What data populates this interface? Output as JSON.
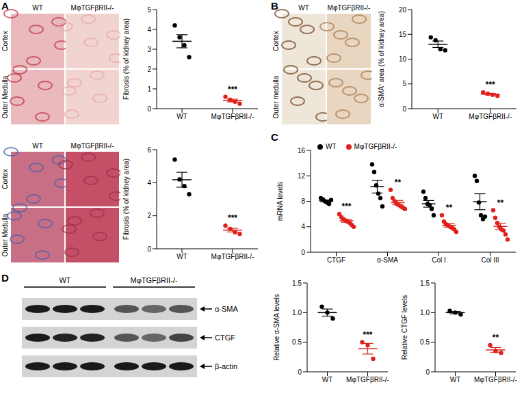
{
  "figure": {
    "letters": [
      "A",
      "B",
      "C",
      "D"
    ],
    "image_panels": [
      {
        "columns": [
          "WT",
          "MφTGFβRII-/-"
        ],
        "rows": [
          "Cortex",
          "Outer Medulla"
        ]
      },
      {
        "columns": [
          "WT",
          "MφTGFβRII-/-"
        ],
        "rows": [
          "Cortex",
          "Outer Medulla"
        ]
      },
      {
        "columns": [
          "WT",
          "MφTGFβRII-/-"
        ],
        "rows": [
          "Cortex",
          "Outer medulla"
        ]
      }
    ],
    "blot": {
      "groups": [
        "WT",
        "MφTGFβRII-/-"
      ],
      "bands": [
        "α-SMA",
        "CTGF",
        "β-actin"
      ]
    }
  },
  "chart_data": [
    {
      "type": "scatter",
      "y_label": "Fibrosis (% of kidney area)",
      "categories": [
        "WT",
        "MφTGFβRII-/-"
      ],
      "colors": [
        "#000000",
        "#e0201b"
      ],
      "values": [
        [
          4.2,
          3.6,
          3.2,
          2.6
        ],
        [
          0.6,
          0.45,
          0.35,
          0.25
        ]
      ],
      "mean": [
        3.4,
        0.41
      ],
      "sem": [
        0.33,
        0.07
      ],
      "significance": [
        null,
        "***"
      ],
      "ylim": [
        0,
        5
      ],
      "yticks": [
        0,
        1,
        2,
        3,
        4,
        5
      ]
    },
    {
      "type": "scatter",
      "y_label": "Fibrosis  (% of kidney area)",
      "categories": [
        "WT",
        "MφTGFβRII-/-"
      ],
      "colors": [
        "#000000",
        "#e0201b"
      ],
      "values": [
        [
          5.4,
          4.2,
          3.8,
          3.3
        ],
        [
          1.4,
          1.2,
          1.0,
          0.9
        ]
      ],
      "mean": [
        4.18,
        1.13
      ],
      "sem": [
        0.45,
        0.11
      ],
      "significance": [
        null,
        "***"
      ],
      "ylim": [
        0,
        6
      ],
      "yticks": [
        0,
        2,
        4,
        6
      ]
    },
    {
      "type": "scatter",
      "y_label": "α-SMA⁺ area (% of kidney area)",
      "categories": [
        "WT",
        "MφTGFβRII-/-"
      ],
      "colors": [
        "#000000",
        "#e0201b"
      ],
      "values": [
        [
          14.4,
          13.8,
          12.0,
          11.8
        ],
        [
          3.3,
          3.0,
          2.8,
          2.6
        ]
      ],
      "mean": [
        13.0,
        2.93
      ],
      "sem": [
        0.65,
        0.15
      ],
      "significance": [
        null,
        "***"
      ],
      "ylim": [
        0,
        20
      ],
      "yticks": [
        0,
        5,
        10,
        15,
        20
      ]
    },
    {
      "type": "scatter",
      "y_label": "mRNA levels",
      "categories": [
        "CTGF",
        "α-SMA",
        "Col I",
        "Col III"
      ],
      "legend": "top",
      "series": [
        {
          "name": "WT",
          "color": "#000000",
          "values": [
            [
              8.5,
              8.3,
              8.0,
              7.8,
              7.6,
              8.2
            ],
            [
              13.8,
              12.6,
              10.5,
              9.2,
              8.5,
              7.2
            ],
            [
              9.5,
              8.5,
              7.6,
              7.4,
              6.8,
              5.8
            ],
            [
              12.0,
              11.2,
              7.8,
              5.8,
              5.2,
              5.6
            ]
          ],
          "mean": [
            8.07,
            10.3,
            7.6,
            7.93
          ],
          "sem": [
            0.14,
            1.0,
            0.52,
            1.25
          ],
          "significance": [
            null,
            null,
            null,
            null
          ]
        },
        {
          "name": "MφTGFβRII-/-",
          "color": "#e0201b",
          "values": [
            [
              6.0,
              5.5,
              5.2,
              5.0,
              4.8,
              4.6,
              4.3,
              4.0
            ],
            [
              9.8,
              8.5,
              8.0,
              7.6,
              7.4,
              7.2,
              7.0,
              6.8
            ],
            [
              5.8,
              4.8,
              4.4,
              4.2,
              4.0,
              3.8,
              3.6,
              3.2
            ],
            [
              6.6,
              5.4,
              4.6,
              4.0,
              3.6,
              3.4,
              2.8,
              2.0
            ]
          ],
          "mean": [
            4.93,
            7.79,
            4.23,
            4.05
          ],
          "sem": [
            0.22,
            0.34,
            0.28,
            0.51
          ],
          "significance": [
            "***",
            "**",
            "**",
            "**"
          ]
        }
      ],
      "ylim": [
        0,
        16
      ],
      "yticks": [
        0,
        4,
        8,
        12,
        16
      ]
    },
    {
      "type": "scatter",
      "y_label": "Relative α-SMA levels",
      "categories": [
        "WT",
        "MφTGFβRII-/-"
      ],
      "colors": [
        "#000000",
        "#e0201b"
      ],
      "values": [
        [
          1.1,
          1.0,
          0.9
        ],
        [
          0.5,
          0.45,
          0.22
        ]
      ],
      "mean": [
        1.0,
        0.39
      ],
      "sem": [
        0.06,
        0.09
      ],
      "significance": [
        null,
        "***"
      ],
      "ylim": [
        0,
        1.5
      ],
      "yticks": [
        0,
        0.5,
        {
          "value": 1,
          "label": "1.0"
        },
        1.5
      ]
    },
    {
      "type": "scatter",
      "y_label": "Relative CTGF levels",
      "categories": [
        "WT",
        "MφTGFβRII-/-"
      ],
      "colors": [
        "#000000",
        "#e0201b"
      ],
      "values": [
        [
          1.03,
          1.0,
          0.97
        ],
        [
          0.45,
          0.35,
          0.32
        ]
      ],
      "mean": [
        1.0,
        0.37
      ],
      "sem": [
        0.02,
        0.04
      ],
      "significance": [
        null,
        "**"
      ],
      "ylim": [
        0,
        1.5
      ],
      "yticks": [
        0,
        0.5,
        {
          "value": 1,
          "label": "1.0"
        },
        1.5
      ]
    }
  ]
}
